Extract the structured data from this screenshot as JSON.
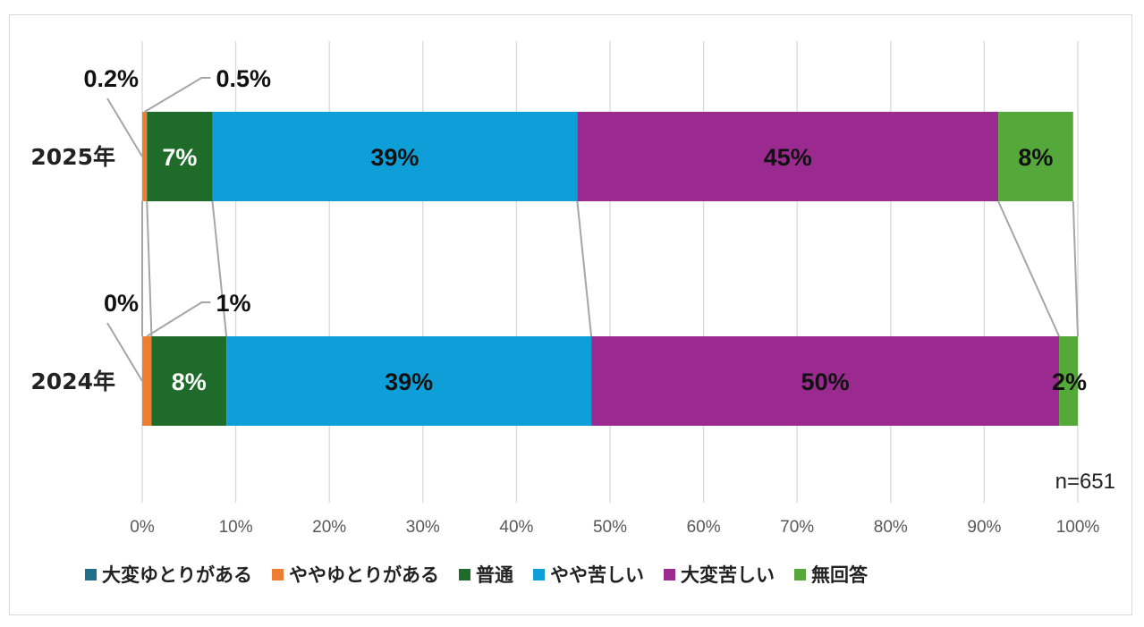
{
  "chart_data": {
    "type": "bar",
    "orientation": "horizontal",
    "stacked": "100%",
    "categories": [
      "2025年",
      "2024年"
    ],
    "series": [
      {
        "name": "大変ゆとりがある",
        "color": "#1f6f8b",
        "values": [
          0,
          0
        ],
        "labels": [
          "",
          ""
        ]
      },
      {
        "name": "ややゆとりがある",
        "color": "#ed7d31",
        "values": [
          0.5,
          1
        ],
        "labels": [
          "0.5%",
          "1%"
        ]
      },
      {
        "name": "普通",
        "color": "#1e6b2a",
        "values": [
          7,
          8
        ],
        "labels": [
          "7%",
          "8%"
        ]
      },
      {
        "name": "やや苦しい",
        "color": "#0f9fd8",
        "values": [
          39,
          39
        ],
        "labels": [
          "39%",
          "39%"
        ]
      },
      {
        "name": "大変苦しい",
        "color": "#9b2a90",
        "values": [
          45,
          50
        ],
        "labels": [
          "45%",
          "50%"
        ]
      },
      {
        "name": "無回答",
        "color": "#55a83a",
        "values": [
          8,
          2
        ],
        "labels": [
          "8%",
          "2%"
        ]
      }
    ],
    "small_labels": [
      "0.2%",
      "0%"
    ],
    "xlim": [
      0,
      100
    ],
    "xticks": [
      "0%",
      "10%",
      "20%",
      "30%",
      "40%",
      "50%",
      "60%",
      "70%",
      "80%",
      "90%",
      "100%"
    ],
    "annotation": "n=651",
    "grid": true,
    "legend_position": "bottom"
  }
}
